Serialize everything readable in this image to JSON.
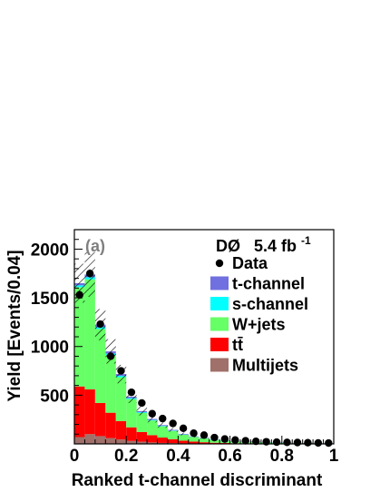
{
  "chart_data": {
    "type": "bar",
    "stacked": true,
    "title": "",
    "panel_label": "(a)",
    "experiment": "DØ",
    "luminosity": {
      "value": "5.4 fb",
      "exponent": "-1"
    },
    "xlabel": "Ranked t-channel discriminant",
    "ylabel": "Yield [Events/0.04]",
    "xlim": [
      0,
      1
    ],
    "ylim": [
      0,
      2200
    ],
    "xticks": [
      "0",
      "0.2",
      "0.4",
      "0.6",
      "0.8",
      "1"
    ],
    "yticks": [
      "500",
      "1000",
      "1500",
      "2000"
    ],
    "grid": false,
    "legend_position": "top-right",
    "bin_width": 0.04,
    "bin_edges": [
      0,
      0.04,
      0.08,
      0.12,
      0.16,
      0.2,
      0.24,
      0.28,
      0.32,
      0.36,
      0.4,
      0.44,
      0.48,
      0.52,
      0.56,
      0.6,
      0.64,
      0.68,
      0.72,
      0.76,
      0.8,
      0.84,
      0.88,
      0.92,
      0.96,
      1.0
    ],
    "series": [
      {
        "name": "Multijets",
        "color": "#a0706a",
        "values": [
          70,
          100,
          80,
          60,
          45,
          30,
          22,
          15,
          10,
          8,
          5,
          4,
          3,
          2,
          2,
          1,
          1,
          1,
          1,
          0,
          0,
          0,
          0,
          0,
          0
        ]
      },
      {
        "name": "tt̄",
        "color": "#ff0000",
        "values": [
          520,
          460,
          340,
          260,
          190,
          140,
          100,
          75,
          55,
          40,
          28,
          20,
          14,
          10,
          8,
          6,
          4,
          3,
          2,
          1,
          1,
          1,
          1,
          0,
          0
        ]
      },
      {
        "name": "W+jets",
        "color": "#66ff66",
        "values": [
          1020,
          1130,
          760,
          590,
          450,
          290,
          195,
          150,
          115,
          85,
          60,
          46,
          38,
          29,
          22,
          19,
          16,
          13,
          11,
          10,
          8,
          7,
          6,
          6,
          5
        ]
      },
      {
        "name": "s-channel",
        "color": "#00ffff",
        "values": [
          18,
          22,
          20,
          18,
          14,
          10,
          8,
          6,
          5,
          4,
          3,
          2,
          2,
          2,
          1,
          1,
          1,
          1,
          1,
          1,
          1,
          1,
          1,
          1,
          1
        ]
      },
      {
        "name": "t-channel",
        "color": "#7070e0",
        "values": [
          22,
          28,
          25,
          22,
          18,
          15,
          12,
          10,
          8,
          7,
          6,
          5,
          4,
          3,
          3,
          2,
          2,
          2,
          2,
          2,
          2,
          1,
          1,
          1,
          1
        ]
      }
    ],
    "uncertainty_hatch": [
      200,
      230,
      160,
      125,
      95,
      65,
      45,
      35,
      27,
      20,
      15,
      11,
      9,
      7,
      5,
      4,
      4,
      3,
      3,
      3,
      2,
      2,
      2,
      2,
      2
    ],
    "data": {
      "name": "Data",
      "x": [
        0.02,
        0.06,
        0.1,
        0.14,
        0.18,
        0.22,
        0.26,
        0.3,
        0.34,
        0.38,
        0.42,
        0.46,
        0.5,
        0.54,
        0.58,
        0.62,
        0.66,
        0.7,
        0.74,
        0.78,
        0.82,
        0.86,
        0.9,
        0.94,
        0.98
      ],
      "y": [
        1530,
        1750,
        1230,
        900,
        750,
        530,
        420,
        310,
        260,
        210,
        160,
        110,
        90,
        65,
        50,
        40,
        32,
        26,
        22,
        18,
        16,
        14,
        12,
        10,
        9
      ]
    },
    "legend": [
      {
        "label": "Data",
        "kind": "marker"
      },
      {
        "label": "t-channel",
        "kind": "box",
        "color": "#7070e0"
      },
      {
        "label": "s-channel",
        "kind": "box",
        "color": "#00ffff"
      },
      {
        "label": "W+jets",
        "kind": "box",
        "color": "#66ff66"
      },
      {
        "label": "tt̄",
        "kind": "box",
        "color": "#ff0000"
      },
      {
        "label": "Multijets",
        "kind": "box",
        "color": "#a0706a"
      }
    ]
  }
}
